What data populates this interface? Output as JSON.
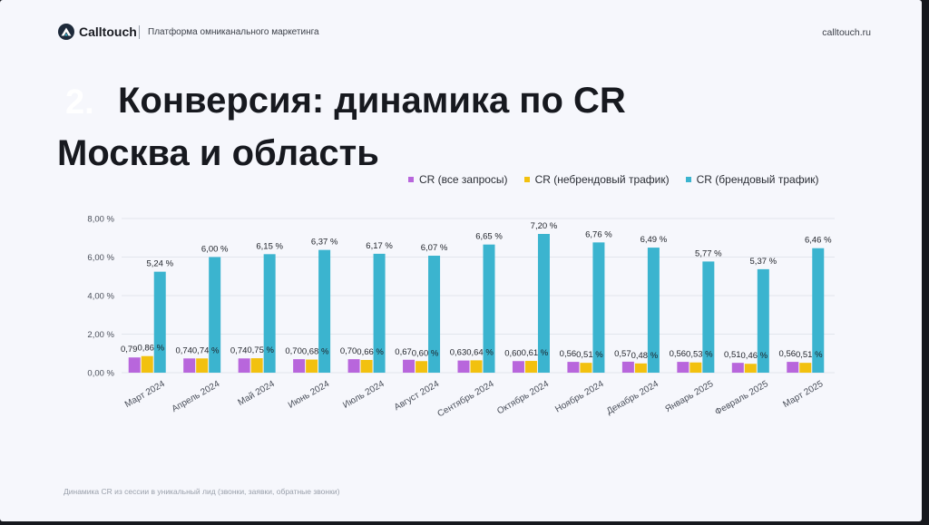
{
  "header": {
    "brand": "Calltouch",
    "tagline": "Платформа омниканального маркетинга",
    "site": "calltouch.ru"
  },
  "title": {
    "number": "2.",
    "main": "Конверсия: динамика по CR",
    "subtitle": "Москва и область"
  },
  "colors": {
    "brand": "#1e2a3a",
    "purple": "#b866dc",
    "yellow": "#f2c10f",
    "blue": "#3bb4cf"
  },
  "icons": [
    "calltouch-logo-icon"
  ],
  "chart_data": {
    "type": "bar",
    "categories": [
      "Март 2024",
      "Апрель 2024",
      "Май 2024",
      "Июнь 2024",
      "Июль 2024",
      "Август 2024",
      "Сентябрь 2024",
      "Октябрь 2024",
      "Ноябрь 2024",
      "Декабрь 2024",
      "Январь 2025",
      "Февраль 2025",
      "Март 2025"
    ],
    "series": [
      {
        "name": "CR (все запросы)",
        "color": "#b866dc",
        "values": [
          0.79,
          0.74,
          0.74,
          0.7,
          0.7,
          0.67,
          0.63,
          0.6,
          0.56,
          0.57,
          0.56,
          0.51,
          0.56
        ],
        "labels": [
          "0,79",
          "0,74",
          "0,74",
          "0,70",
          "0,70",
          "0,67",
          "0,63",
          "0,60",
          "0,56",
          "0,57",
          "0,56",
          "0,51",
          "0,56"
        ]
      },
      {
        "name": "CR (небрендовый трафик)",
        "color": "#f2c10f",
        "values": [
          0.86,
          0.74,
          0.75,
          0.68,
          0.66,
          0.6,
          0.64,
          0.61,
          0.51,
          0.48,
          0.53,
          0.46,
          0.51
        ],
        "labels": [
          "0,86 %",
          "0,74 %",
          "0,75 %",
          "0,68 %",
          "0,66 %",
          "0,60 %",
          "0,64 %",
          "0,61 %",
          "0,51 %",
          "0,48 %",
          "0,53 %",
          "0,46 %",
          "0,51 %"
        ]
      },
      {
        "name": "CR (брендовый трафик)",
        "color": "#3bb4cf",
        "values": [
          5.24,
          6.0,
          6.15,
          6.37,
          6.17,
          6.07,
          6.65,
          7.2,
          6.76,
          6.49,
          5.77,
          5.37,
          6.46
        ],
        "labels": [
          "5,24 %",
          "6,00 %",
          "6,15 %",
          "6,37 %",
          "6,17 %",
          "6,07 %",
          "6,65 %",
          "7,20 %",
          "6,76 %",
          "6,49 %",
          "5,77 %",
          "5,37 %",
          "6,46 %"
        ]
      }
    ],
    "y_ticks": [
      "0,00 %",
      "2,00 %",
      "4,00 %",
      "6,00 %",
      "8,00 %"
    ],
    "ylim": [
      0,
      8
    ],
    "grid": true,
    "legend_position": "top-right"
  },
  "footnote": "Динамика CR из сессии в уникальный лид (звонки, заявки, обратные звонки)"
}
